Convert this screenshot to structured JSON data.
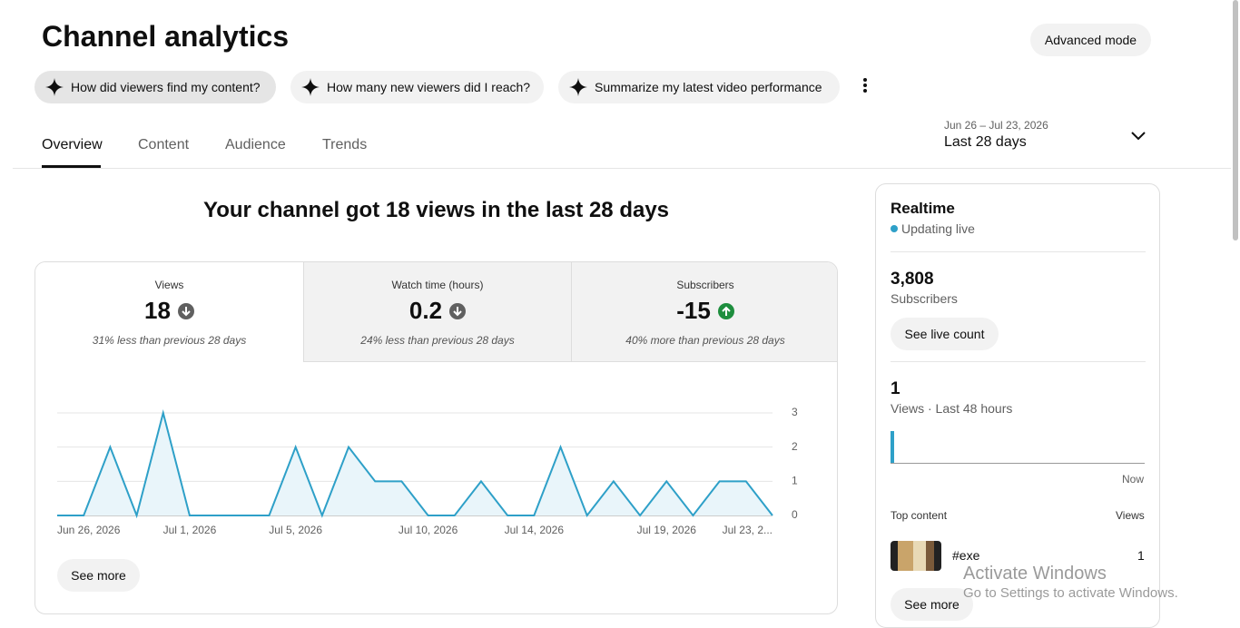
{
  "header": {
    "title": "Channel analytics",
    "advanced_mode": "Advanced mode"
  },
  "suggestions": [
    "How did viewers find my content?",
    "How many new viewers did I reach?",
    "Summarize my latest video performance"
  ],
  "tabs": [
    "Overview",
    "Content",
    "Audience",
    "Trends"
  ],
  "date_range": {
    "range": "Jun 26 – Jul 23, 2026",
    "label": "Last 28 days"
  },
  "headline": "Your channel got 18 views in the last 28 days",
  "metrics": [
    {
      "name": "Views",
      "value": 18,
      "change": "31% less than previous 28 days"
    },
    {
      "name": "Watch time (hours)",
      "value": 0.2,
      "change": "24% less than previous 28 days"
    },
    {
      "name": "Subscribers",
      "value": -15,
      "change": "40% more than previous 28 days"
    }
  ],
  "chart_data": {
    "type": "line",
    "color": "#2ea0c8",
    "fill": "#e9f5fa",
    "categories": [
      "Jun 26, 2026",
      null,
      null,
      null,
      null,
      "Jul 1, 2026",
      null,
      null,
      null,
      "Jul 5, 2026",
      null,
      null,
      null,
      null,
      "Jul 10, 2026",
      null,
      null,
      null,
      "Jul 14, 2026",
      null,
      null,
      null,
      null,
      "Jul 19, 2026",
      null,
      null,
      null,
      "Jul 23, 2..."
    ],
    "values": [
      0,
      0,
      2,
      0,
      3,
      0,
      0,
      0,
      0,
      2,
      0,
      2,
      1,
      1,
      0,
      0,
      1,
      0,
      0,
      2,
      0,
      1,
      0,
      1,
      0,
      1,
      1,
      0
    ],
    "ylim": [
      0,
      3
    ],
    "yticks": [
      0,
      1,
      2,
      3
    ],
    "grid": true
  },
  "see_more": "See more",
  "realtime": {
    "title": "Realtime",
    "status": "Updating live",
    "subscribers": "3,808",
    "subscribers_label": "Subscribers",
    "live_button": "See live count",
    "views": "1",
    "views_label": "Views · Last 48 hours",
    "now": "Now",
    "top_content": "Top content",
    "views_header": "Views",
    "item": {
      "title": "#exe",
      "views": "1"
    },
    "see_more": "See more"
  },
  "watermark": {
    "title": "Activate Windows",
    "subtitle": "Go to Settings to activate Windows."
  }
}
